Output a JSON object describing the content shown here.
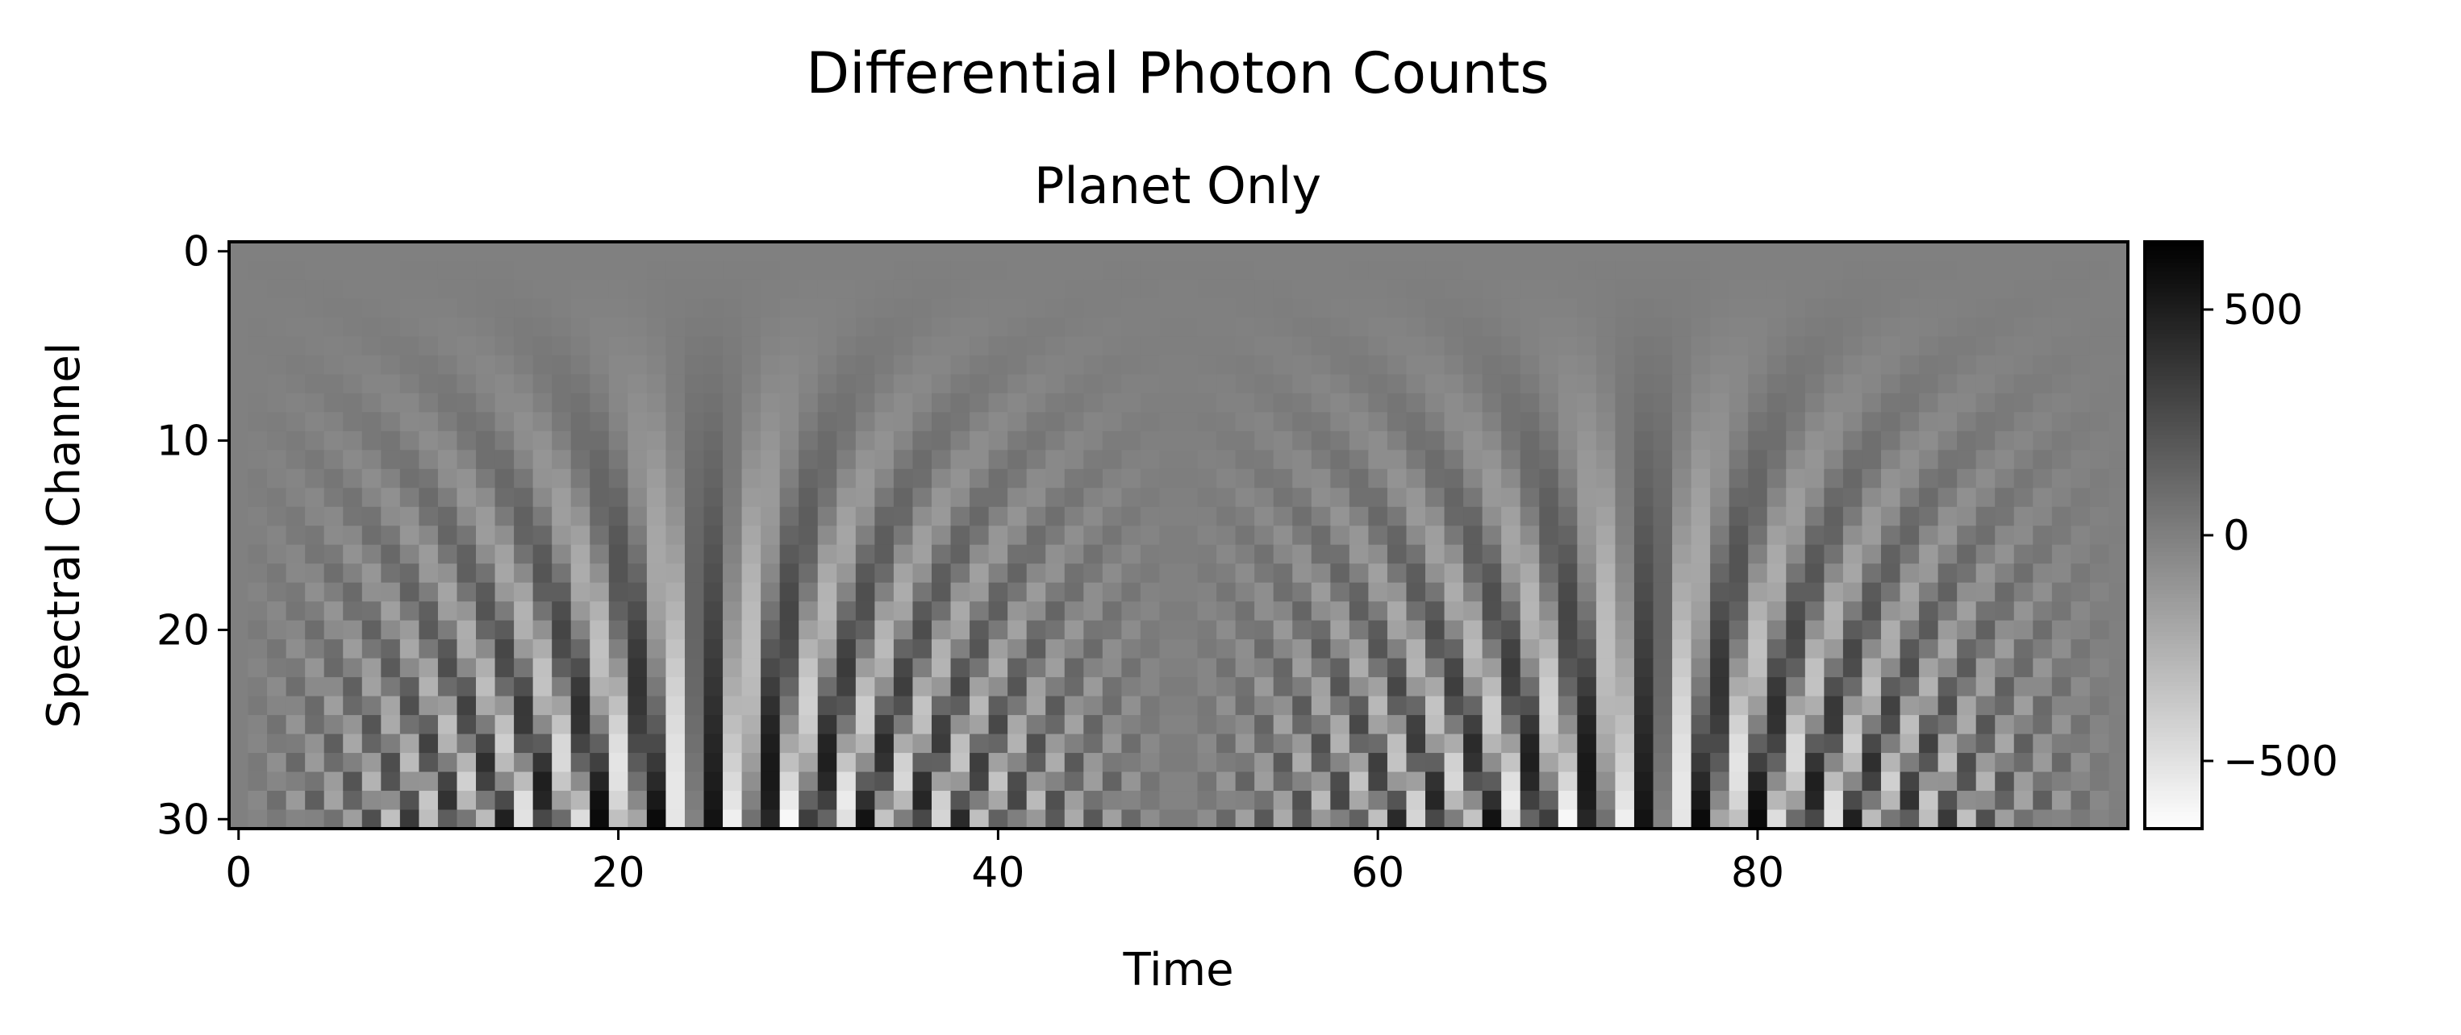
{
  "chart_data": {
    "type": "heatmap",
    "title": "Differential Photon Counts",
    "subtitle": "Planet Only",
    "xlabel": "Time",
    "ylabel": "Spectral Channel",
    "n_time": 100,
    "n_channels": 31,
    "xlim": [
      -0.5,
      99.5
    ],
    "ylim": [
      30.5,
      -0.5
    ],
    "x_ticks": [
      0,
      20,
      40,
      60,
      80
    ],
    "y_ticks": [
      0,
      10,
      20,
      30
    ],
    "colormap": "gray_r",
    "color_low": "#ffffff",
    "color_high": "#000000",
    "vmin": -650,
    "vmax": 650,
    "colorbar_ticks": [
      500,
      0,
      -500
    ],
    "colorbar_tick_labels": [
      "500",
      "0",
      "−500"
    ],
    "pattern": {
      "description_of_values": "Fringe pattern: amplitude grows with channel index, zero near time 0, 49 and 99; fringe frequency increases with channel",
      "peak_amplitude": 640,
      "half_period_time": 49.5
    },
    "grid": false
  }
}
